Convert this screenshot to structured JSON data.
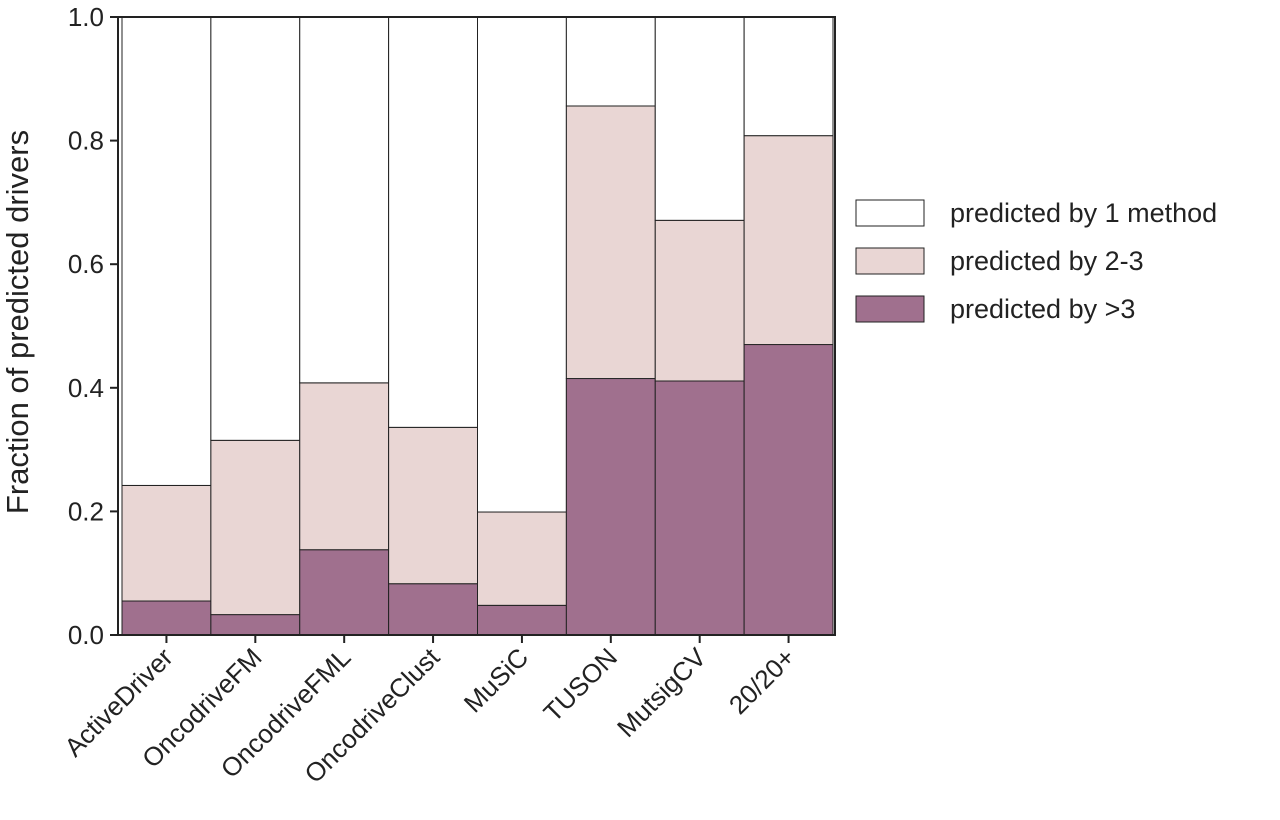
{
  "chart_data": {
    "type": "bar",
    "stacked": true,
    "categories": [
      "ActiveDriver",
      "OncodriveFM",
      "OncodriveFML",
      "OncodriveClust",
      "MuSiC",
      "TUSON",
      "MutsigCV",
      "20/20+"
    ],
    "series": [
      {
        "name": "predicted by >3",
        "color": "#a0708e",
        "values": [
          0.055,
          0.033,
          0.138,
          0.083,
          0.048,
          0.415,
          0.411,
          0.47
        ]
      },
      {
        "name": "predicted by 2-3",
        "color": "#e9d6d4",
        "values": [
          0.187,
          0.282,
          0.27,
          0.253,
          0.151,
          0.441,
          0.26,
          0.338
        ]
      },
      {
        "name": "predicted by 1 method",
        "color": "#ffffff",
        "values": [
          0.758,
          0.685,
          0.592,
          0.664,
          0.801,
          0.144,
          0.329,
          0.192
        ]
      }
    ],
    "ylabel": "Fraction of predicted drivers",
    "xlabel": "",
    "ylim": [
      0,
      1
    ],
    "yticks": [
      "0.0",
      "0.2",
      "0.4",
      "0.6",
      "0.8",
      "1.0"
    ],
    "grid": false,
    "legend_position": "right"
  }
}
